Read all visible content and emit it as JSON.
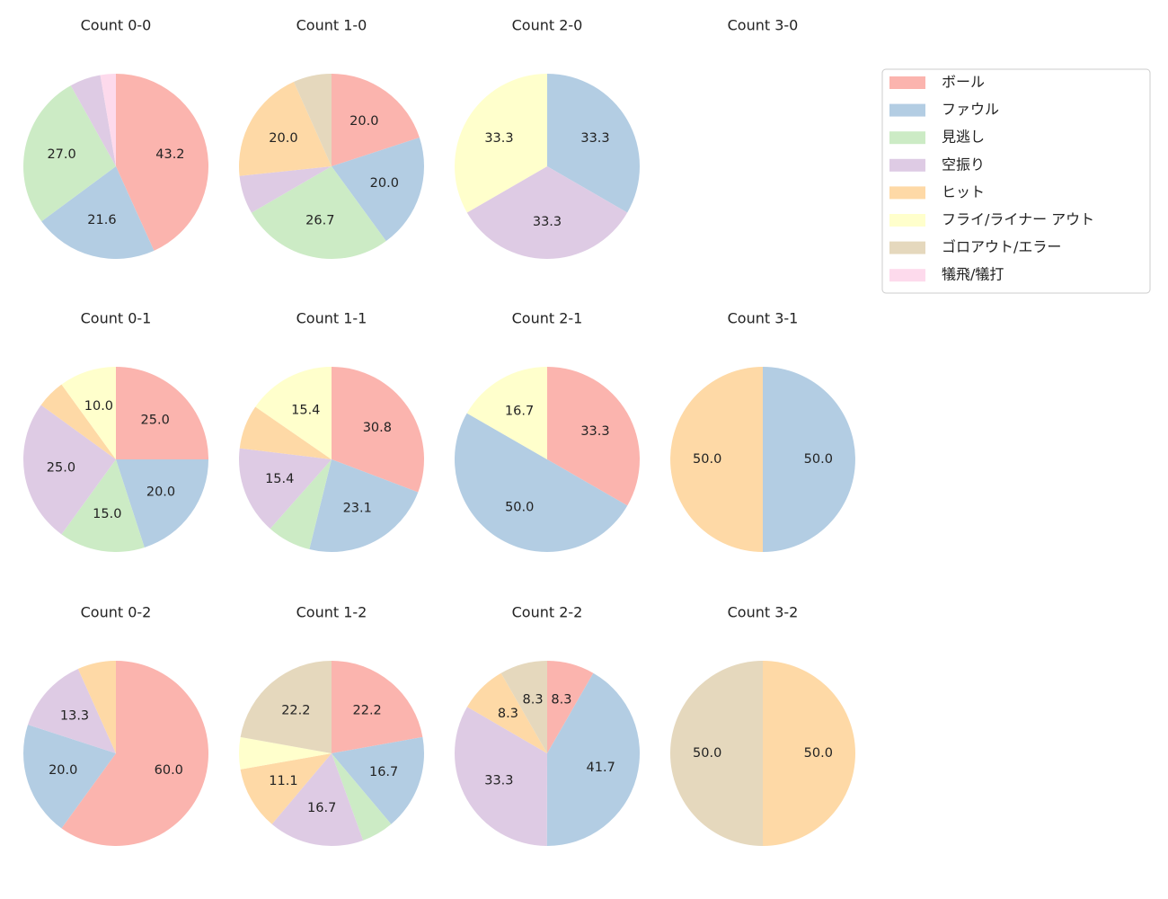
{
  "chart_data": [
    {
      "type": "pie",
      "title": "Count 0-0",
      "categories": [
        "ボール",
        "ファウル",
        "見逃し",
        "空振り",
        "犠飛/犠打"
      ],
      "values": [
        43.2,
        21.6,
        27.0,
        5.4,
        2.7
      ],
      "value_labels": [
        "43.2",
        "21.6",
        "27.0",
        null,
        null
      ]
    },
    {
      "type": "pie",
      "title": "Count 1-0",
      "categories": [
        "ボール",
        "ファウル",
        "見逃し",
        "空振り",
        "ヒット",
        "ゴロアウト/エラー"
      ],
      "values": [
        20.0,
        20.0,
        26.7,
        6.7,
        20.0,
        6.7
      ],
      "value_labels": [
        "20.0",
        "20.0",
        "26.7",
        null,
        "20.0",
        null
      ]
    },
    {
      "type": "pie",
      "title": "Count 2-0",
      "categories": [
        "ファウル",
        "空振り",
        "フライ/ライナー アウト"
      ],
      "values": [
        33.3,
        33.3,
        33.3
      ],
      "value_labels": [
        "33.3",
        "33.3",
        "33.3"
      ]
    },
    {
      "type": "pie",
      "title": "Count 3-0",
      "categories": [],
      "values": [],
      "value_labels": []
    },
    {
      "type": "pie",
      "title": "Count 0-1",
      "categories": [
        "ボール",
        "ファウル",
        "見逃し",
        "空振り",
        "ヒット",
        "フライ/ライナー アウト"
      ],
      "values": [
        25.0,
        20.0,
        15.0,
        25.0,
        5.0,
        10.0
      ],
      "value_labels": [
        "25.0",
        "20.0",
        "15.0",
        "25.0",
        null,
        "10.0"
      ]
    },
    {
      "type": "pie",
      "title": "Count 1-1",
      "categories": [
        "ボール",
        "ファウル",
        "見逃し",
        "空振り",
        "ヒット",
        "フライ/ライナー アウト"
      ],
      "values": [
        30.8,
        23.1,
        7.7,
        15.4,
        7.7,
        15.4
      ],
      "value_labels": [
        "30.8",
        "23.1",
        null,
        "15.4",
        null,
        "15.4"
      ]
    },
    {
      "type": "pie",
      "title": "Count 2-1",
      "categories": [
        "ボール",
        "ファウル",
        "フライ/ライナー アウト"
      ],
      "values": [
        33.3,
        50.0,
        16.7
      ],
      "value_labels": [
        "33.3",
        "50.0",
        "16.7"
      ]
    },
    {
      "type": "pie",
      "title": "Count 3-1",
      "categories": [
        "ファウル",
        "ヒット"
      ],
      "values": [
        50.0,
        50.0
      ],
      "value_labels": [
        "50.0",
        "50.0"
      ]
    },
    {
      "type": "pie",
      "title": "Count 0-2",
      "categories": [
        "ボール",
        "ファウル",
        "空振り",
        "ヒット"
      ],
      "values": [
        60.0,
        20.0,
        13.3,
        6.7
      ],
      "value_labels": [
        "60.0",
        "20.0",
        "13.3",
        null
      ]
    },
    {
      "type": "pie",
      "title": "Count 1-2",
      "categories": [
        "ボール",
        "ファウル",
        "見逃し",
        "空振り",
        "ヒット",
        "フライ/ライナー アウト",
        "ゴロアウト/エラー"
      ],
      "values": [
        22.2,
        16.7,
        5.6,
        16.7,
        11.1,
        5.6,
        22.2
      ],
      "value_labels": [
        "22.2",
        "16.7",
        null,
        "16.7",
        "11.1",
        null,
        "22.2"
      ]
    },
    {
      "type": "pie",
      "title": "Count 2-2",
      "categories": [
        "ボール",
        "ファウル",
        "空振り",
        "ヒット",
        "ゴロアウト/エラー"
      ],
      "values": [
        8.3,
        41.7,
        33.3,
        8.3,
        8.3
      ],
      "value_labels": [
        "8.3",
        "41.7",
        "33.3",
        "8.3",
        "8.3"
      ]
    },
    {
      "type": "pie",
      "title": "Count 3-2",
      "categories": [
        "ヒット",
        "ゴロアウト/エラー"
      ],
      "values": [
        50.0,
        50.0
      ],
      "value_labels": [
        "50.0",
        "50.0"
      ]
    }
  ],
  "legend": {
    "position": "upper right",
    "labels": [
      "ボール",
      "ファウル",
      "見逃し",
      "空振り",
      "ヒット",
      "フライ/ライナー アウト",
      "ゴロアウト/エラー",
      "犠飛/犠打"
    ],
    "colors": [
      "#fbb4ae",
      "#b3cde3",
      "#ccebc5",
      "#decbe4",
      "#fed9a6",
      "#ffffcc",
      "#e5d8bd",
      "#fddaec"
    ]
  }
}
